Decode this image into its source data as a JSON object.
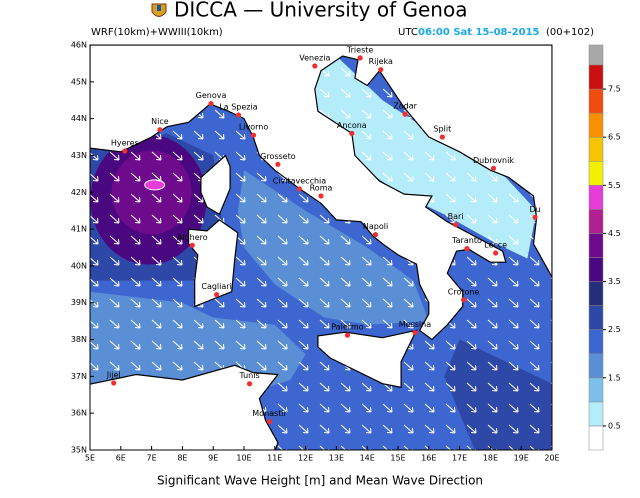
{
  "title": "DICCA — University of Genoa",
  "model": "WRF(10km)+WWIII(10km)",
  "time": {
    "zone": "UTC",
    "stamp": "06:00 Sat 15-08-2015",
    "lead": "(00+102)"
  },
  "caption": "Significant Wave Height [m] and Mean Wave Direction",
  "map": {
    "lonlim": [
      5,
      20
    ],
    "latlim": [
      35,
      46
    ],
    "lonticks": [
      {
        "value": 5,
        "label": "5E"
      },
      {
        "value": 6,
        "label": "6E"
      },
      {
        "value": 7,
        "label": "7E"
      },
      {
        "value": 8,
        "label": "8E"
      },
      {
        "value": 9,
        "label": "9E"
      },
      {
        "value": 10,
        "label": "10E"
      },
      {
        "value": 11,
        "label": "11E"
      },
      {
        "value": 12,
        "label": "12E"
      },
      {
        "value": 13,
        "label": "13E"
      },
      {
        "value": 14,
        "label": "14E"
      },
      {
        "value": 15,
        "label": "15E"
      },
      {
        "value": 16,
        "label": "16E"
      },
      {
        "value": 17,
        "label": "17E"
      },
      {
        "value": 18,
        "label": "18E"
      },
      {
        "value": 19,
        "label": "19E"
      },
      {
        "value": 20,
        "label": "20E"
      }
    ],
    "latticks": [
      {
        "value": 35,
        "label": "35N"
      },
      {
        "value": 36,
        "label": "36N"
      },
      {
        "value": 37,
        "label": "37N"
      },
      {
        "value": 38,
        "label": "38N"
      },
      {
        "value": 39,
        "label": "39N"
      },
      {
        "value": 40,
        "label": "40N"
      },
      {
        "value": 41,
        "label": "41N"
      },
      {
        "value": 42,
        "label": "42N"
      },
      {
        "value": 43,
        "label": "43N"
      },
      {
        "value": 44,
        "label": "44N"
      },
      {
        "value": 45,
        "label": "45N"
      },
      {
        "value": 46,
        "label": "46N"
      }
    ],
    "cities": [
      {
        "name": "Venezia",
        "lon": 12.3,
        "lat": 45.43
      },
      {
        "name": "Trieste",
        "lon": 13.77,
        "lat": 45.65
      },
      {
        "name": "Rijeka",
        "lon": 14.44,
        "lat": 45.33
      },
      {
        "name": "Genova",
        "lon": 8.93,
        "lat": 44.41
      },
      {
        "name": "La Spezia",
        "lon": 9.82,
        "lat": 44.1
      },
      {
        "name": "Nice",
        "lon": 7.27,
        "lat": 43.7
      },
      {
        "name": "Livorno",
        "lon": 10.31,
        "lat": 43.55
      },
      {
        "name": "Zadar",
        "lon": 15.23,
        "lat": 44.12
      },
      {
        "name": "Split",
        "lon": 16.44,
        "lat": 43.5
      },
      {
        "name": "Ancona",
        "lon": 13.5,
        "lat": 43.6
      },
      {
        "name": "Hyeres",
        "lon": 6.13,
        "lat": 43.12
      },
      {
        "name": "Grosseto",
        "lon": 11.1,
        "lat": 42.76
      },
      {
        "name": "Dubrovnik",
        "lon": 18.1,
        "lat": 42.65
      },
      {
        "name": "Civitavecchia",
        "lon": 11.8,
        "lat": 42.09
      },
      {
        "name": "Roma",
        "lon": 12.5,
        "lat": 41.9
      },
      {
        "name": "Du",
        "lon": 19.45,
        "lat": 41.32
      },
      {
        "name": "Bari",
        "lon": 16.87,
        "lat": 41.12
      },
      {
        "name": "Napoli",
        "lon": 14.27,
        "lat": 40.85
      },
      {
        "name": "Alghero",
        "lon": 8.32,
        "lat": 40.56
      },
      {
        "name": "Taranto",
        "lon": 17.24,
        "lat": 40.47
      },
      {
        "name": "Lecce",
        "lon": 18.17,
        "lat": 40.35
      },
      {
        "name": "Cagliari",
        "lon": 9.11,
        "lat": 39.22
      },
      {
        "name": "Crotone",
        "lon": 17.13,
        "lat": 39.08
      },
      {
        "name": "Palermo",
        "lon": 13.36,
        "lat": 38.12
      },
      {
        "name": "Messina",
        "lon": 15.55,
        "lat": 38.19
      },
      {
        "name": "Jijel",
        "lon": 5.77,
        "lat": 36.82
      },
      {
        "name": "Tunis",
        "lon": 10.18,
        "lat": 36.8
      },
      {
        "name": "Monastir",
        "lon": 10.83,
        "lat": 35.77
      }
    ]
  },
  "colorbar": {
    "range": [
      0,
      8
    ],
    "ticks": [
      0.5,
      1.5,
      2.5,
      3.5,
      4.5,
      5.5,
      6.5,
      7.5
    ],
    "colors": [
      "#ffffff",
      "#b4ecfa",
      "#7cc0ea",
      "#5a8fd6",
      "#3d66d0",
      "#2e48a8",
      "#26307a",
      "#4a0880",
      "#6e0a8c",
      "#b02090",
      "#e63cd8",
      "#f0f000",
      "#f8c400",
      "#f89000",
      "#f04c10",
      "#c81010"
    ],
    "over_color": "#a8a8a8"
  }
}
